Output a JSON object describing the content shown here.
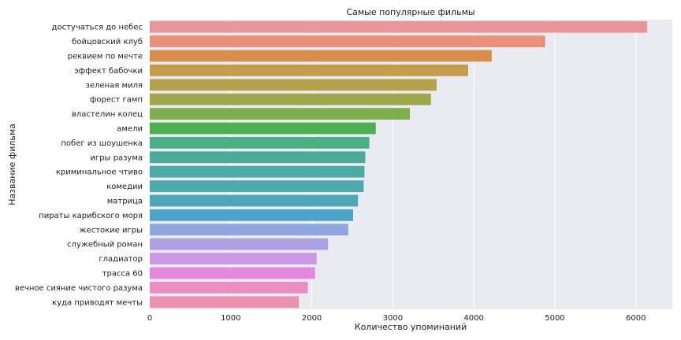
{
  "chart_data": {
    "type": "bar",
    "orientation": "horizontal",
    "title": "Самые популярные фильмы",
    "xlabel": "Количество упоминаний",
    "ylabel": "Название фильма",
    "xlim": [
      0,
      6450
    ],
    "xticks": [
      0,
      1000,
      2000,
      3000,
      4000,
      5000,
      6000
    ],
    "grid": true,
    "background": "#eaeaf2",
    "categories": [
      "достучаться до небес",
      "бойцовский клуб",
      "реквием по мечте",
      "эффект бабочки",
      "зеленая миля",
      "форест гамп",
      "властелин колец",
      "амели",
      "побег из шоушенка",
      "игры разума",
      "криминальное чтиво",
      "комедии",
      "матрица",
      "пираты карибского моря",
      "жестокие игры",
      "служебный роман",
      "гладиатор",
      "трасса 60",
      "вечное сияние чистого разума",
      "куда приводят мечты"
    ],
    "values": [
      6140,
      4880,
      4220,
      3930,
      3540,
      3470,
      3210,
      2790,
      2710,
      2660,
      2650,
      2640,
      2570,
      2510,
      2450,
      2200,
      2060,
      2040,
      1950,
      1840
    ],
    "colors": [
      "#ea9699",
      "#e8907c",
      "#d98c4c",
      "#c39c4c",
      "#b3a14c",
      "#9ea74c",
      "#7fae4c",
      "#4caf52",
      "#4cae84",
      "#4cab98",
      "#4caba4",
      "#4caaac",
      "#4ca8b5",
      "#4ca5c8",
      "#8fa6e1",
      "#ada1e4",
      "#cc98e3",
      "#e587e0",
      "#e98dc3",
      "#ea92af"
    ]
  }
}
